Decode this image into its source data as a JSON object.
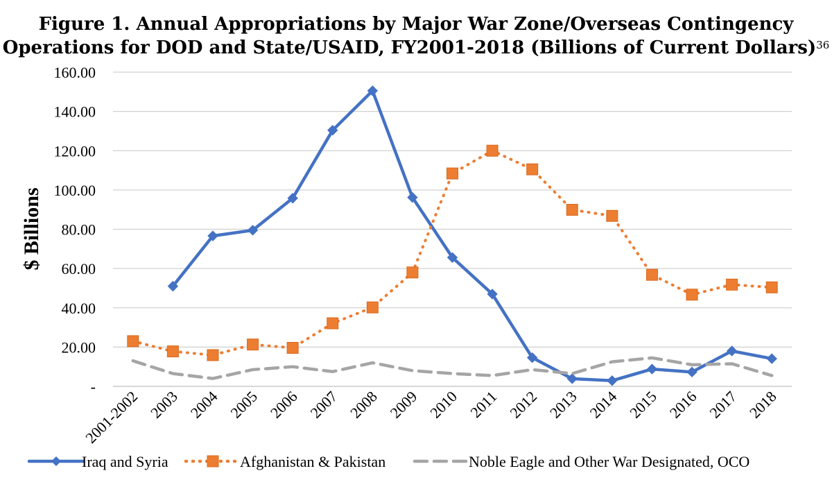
{
  "title": {
    "line1": "Figure 1. Annual Appropriations by Major War Zone/Overseas Contingency",
    "line2": "Operations for DOD and State/USAID, FY2001-2018 (Billions of Current Dollars)",
    "footnote": "36"
  },
  "chart_data": {
    "type": "line",
    "title": "Figure 1. Annual Appropriations by Major War Zone/Overseas Contingency Operations for DOD and State/USAID, FY2001-2018 (Billions of Current Dollars)",
    "xlabel": "",
    "ylabel": "$ Billions",
    "ylim": [
      0,
      160
    ],
    "yticks": [
      "-",
      "20.00",
      "40.00",
      "60.00",
      "80.00",
      "100.00",
      "120.00",
      "140.00",
      "160.00"
    ],
    "grid": "horizontal",
    "legend_position": "bottom",
    "categories": [
      "2001-2002",
      "2003",
      "2004",
      "2005",
      "2006",
      "2007",
      "2008",
      "2009",
      "2010",
      "2011",
      "2012",
      "2013",
      "2014",
      "2015",
      "2016",
      "2017",
      "2018"
    ],
    "series": [
      {
        "name": "Iraq and Syria",
        "color": "#4472C4",
        "style": "solid",
        "marker": "diamond",
        "values": [
          null,
          51.0,
          76.6,
          79.5,
          95.8,
          130.4,
          150.5,
          96.2,
          65.6,
          47.0,
          14.6,
          3.9,
          2.9,
          8.8,
          7.3,
          18.0,
          14.1
        ]
      },
      {
        "name": "Afghanistan & Pakistan",
        "color": "#ED7D31",
        "style": "dotted",
        "marker": "square",
        "values": [
          23.0,
          17.8,
          15.9,
          21.3,
          19.6,
          32.1,
          40.2,
          58.0,
          108.4,
          120.0,
          110.5,
          89.9,
          86.8,
          56.8,
          46.7,
          51.8,
          50.4
        ]
      },
      {
        "name": "Noble Eagle and Other War Designated, OCO",
        "color": "#A5A5A5",
        "style": "dashed",
        "marker": "none",
        "values": [
          13.0,
          6.5,
          4.0,
          8.5,
          10.0,
          7.5,
          12.0,
          8.0,
          6.5,
          5.5,
          8.5,
          6.5,
          12.5,
          14.5,
          11.0,
          11.5,
          5.5
        ]
      }
    ]
  }
}
